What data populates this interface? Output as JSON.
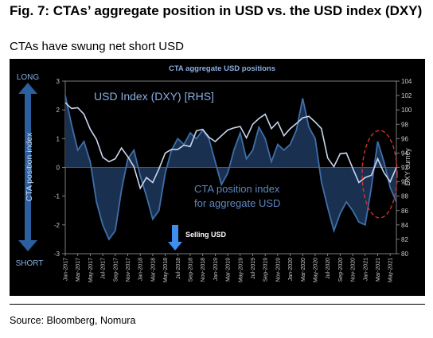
{
  "figure": {
    "title": "Fig. 7: CTAs’ aggregate position in USD vs. the USD index (DXY)",
    "subtitle": "CTAs have swung net short USD",
    "source": "Source: Bloomberg, Nomura"
  },
  "colors": {
    "background": "#000000",
    "dxy_line": "#c9d6ee",
    "cta_fill": "#1a3050",
    "cta_line": "#3f6fa8",
    "text_blue": "#8aaee0",
    "arrow_blue": "#2b5f9e",
    "selling_arrow": "#3e8ef0",
    "axis_text": "#c8c8c8",
    "ellipse": "#d0312d"
  },
  "annotations": {
    "long": "LONG",
    "short": "SHORT",
    "position_index": "CTA position index",
    "usd_index": "USD Index (DXY) [RHS]",
    "cta_label_line1": "CTA position index",
    "cta_label_line2": "for aggregate USD",
    "selling": "Selling USD"
  },
  "chart_data": {
    "type": "line",
    "title": "CTA aggregate USD positions",
    "ylabel_right": "DXY curncy",
    "ylim": [
      -3,
      3
    ],
    "yticks": [
      -3,
      -2,
      -1,
      0,
      1,
      2,
      3
    ],
    "ylim_right": [
      80,
      104
    ],
    "yticks_right": [
      80,
      82,
      84,
      86,
      88,
      90,
      92,
      94,
      96,
      98,
      100,
      102,
      104
    ],
    "x_ticks": [
      "Jan-2017",
      "Mar-2017",
      "May-2017",
      "Jul-2017",
      "Sep-2017",
      "Nov-2017",
      "Jan-2018",
      "Mar-2018",
      "May-2018",
      "Jul-2018",
      "Sep-2018",
      "Nov-2018",
      "Jan-2019",
      "Mar-2019",
      "May-2019",
      "Jul-2019",
      "Sep-2019",
      "Nov-2019",
      "Jan-2020",
      "Mar-2020",
      "May-2020",
      "Jul-2020",
      "Sep-2020",
      "Nov-2020",
      "Jan-2021",
      "Mar-2021",
      "May-2021"
    ],
    "months": [
      "2017-01",
      "2017-02",
      "2017-03",
      "2017-04",
      "2017-05",
      "2017-06",
      "2017-07",
      "2017-08",
      "2017-09",
      "2017-10",
      "2017-11",
      "2017-12",
      "2018-01",
      "2018-02",
      "2018-03",
      "2018-04",
      "2018-05",
      "2018-06",
      "2018-07",
      "2018-08",
      "2018-09",
      "2018-10",
      "2018-11",
      "2018-12",
      "2019-01",
      "2019-02",
      "2019-03",
      "2019-04",
      "2019-05",
      "2019-06",
      "2019-07",
      "2019-08",
      "2019-09",
      "2019-10",
      "2019-11",
      "2019-12",
      "2020-01",
      "2020-02",
      "2020-03",
      "2020-04",
      "2020-05",
      "2020-06",
      "2020-07",
      "2020-08",
      "2020-09",
      "2020-10",
      "2020-11",
      "2020-12",
      "2021-01",
      "2021-02",
      "2021-03",
      "2021-04",
      "2021-05",
      "2021-06"
    ],
    "series": [
      {
        "axis": "left",
        "values": [
          2.5,
          1.5,
          0.6,
          0.9,
          0.2,
          -1.2,
          -2.0,
          -2.5,
          -2.2,
          -0.8,
          0.3,
          0.6,
          -0.3,
          -1.0,
          -1.8,
          -1.5,
          -0.2,
          0.6,
          1.0,
          0.8,
          1.2,
          1.0,
          1.3,
          1.0,
          0.2,
          -0.6,
          -0.2,
          0.6,
          1.2,
          0.3,
          0.6,
          1.4,
          1.0,
          0.2,
          0.8,
          0.6,
          0.8,
          1.3,
          2.4,
          1.4,
          1.0,
          -0.5,
          -1.4,
          -2.2,
          -1.6,
          -1.2,
          -1.5,
          -1.9,
          -2.0,
          -0.7,
          0.9,
          0.2,
          -0.7,
          -1.2
        ]
      },
      {
        "name": "USD Index (DXY) [RHS]",
        "axis": "right",
        "values": [
          101.0,
          100.2,
          100.3,
          99.4,
          97.3,
          95.9,
          93.4,
          92.8,
          93.2,
          94.7,
          93.5,
          92.1,
          89.1,
          90.6,
          89.9,
          91.8,
          94.0,
          94.5,
          94.5,
          95.1,
          94.9,
          97.1,
          97.3,
          96.2,
          95.6,
          96.4,
          97.2,
          97.5,
          97.7,
          96.1,
          98.0,
          98.8,
          99.4,
          97.4,
          98.3,
          96.4,
          97.4,
          98.1,
          98.9,
          99.1,
          98.3,
          97.4,
          93.3,
          92.1,
          93.9,
          94.0,
          91.9,
          89.9,
          90.6,
          90.9,
          93.2,
          91.3,
          90.0,
          92.0
        ]
      }
    ]
  }
}
